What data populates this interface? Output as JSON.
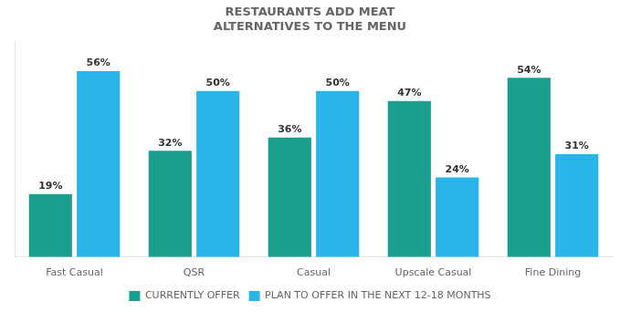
{
  "chart_data": {
    "type": "bar",
    "title": [
      "RESTAURANTS ADD MEAT",
      "ALTERNATIVES TO THE MENU"
    ],
    "categories": [
      "Fast Casual",
      "QSR",
      "Casual",
      "Upscale Casual",
      "Fine Dining"
    ],
    "series": [
      {
        "name": "CURRENTLY OFFER",
        "color": "#1a9e8e",
        "values": [
          19,
          32,
          36,
          47,
          54
        ],
        "value_labels": [
          "19%",
          "32%",
          "36%",
          "47%",
          "54%"
        ]
      },
      {
        "name": "PLAN TO OFFER IN THE NEXT 12-18 MONTHS",
        "color": "#29b5e8",
        "values": [
          56,
          50,
          50,
          24,
          31
        ],
        "value_labels": [
          "56%",
          "50%",
          "50%",
          "24%",
          "31%"
        ]
      }
    ],
    "ylim": [
      0,
      65
    ],
    "tick_labels": "x",
    "grid": false,
    "legend": "bottom",
    "data_labels": true
  }
}
